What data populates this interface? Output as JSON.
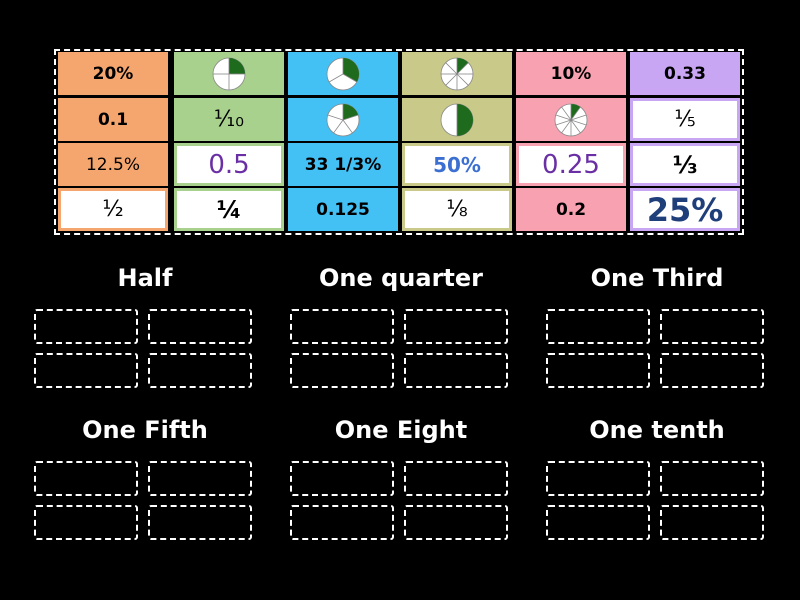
{
  "tiles": [
    "20%",
    "10%",
    "0.33",
    "0.1",
    "⅒",
    "⅕",
    "12.5%",
    "0.5",
    "33 1/3%",
    "50%",
    "0.25",
    "⅓",
    "½",
    "¼",
    "0.125",
    "⅛",
    "0.2",
    "25%"
  ],
  "groups": [
    "Half",
    "One quarter",
    "One Third",
    "One Fifth",
    "One Eight",
    "One tenth"
  ]
}
